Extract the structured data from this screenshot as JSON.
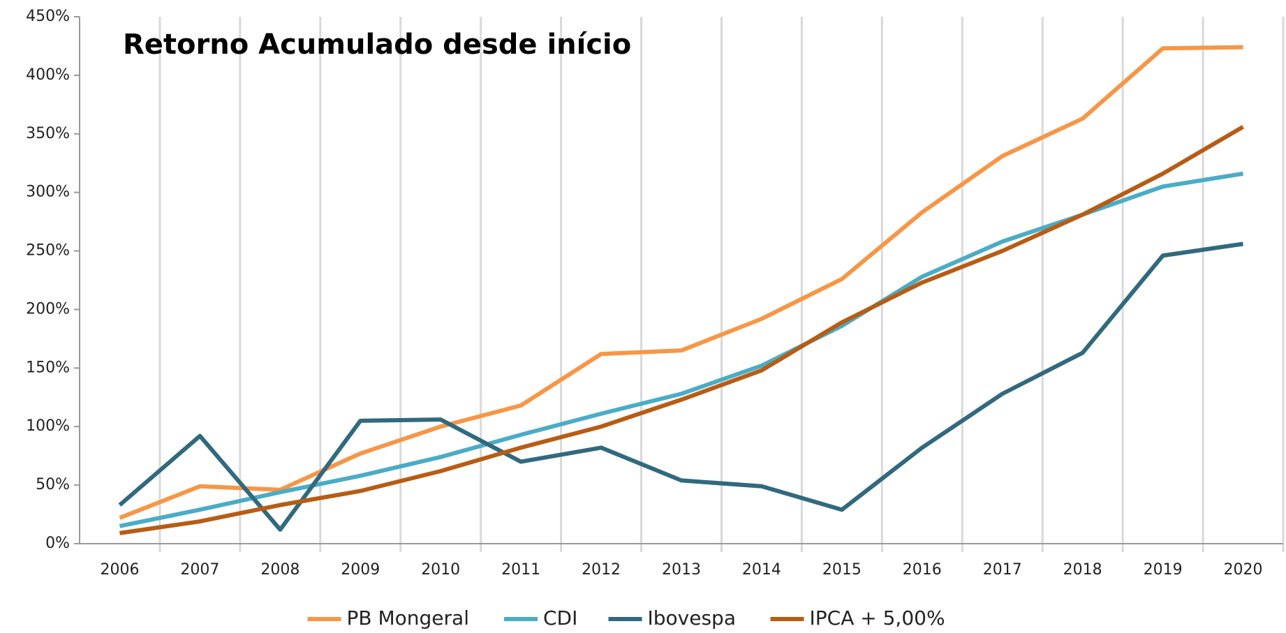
{
  "chart_data": {
    "type": "line",
    "title": "Retorno Acumulado desde início",
    "categories": [
      "2006",
      "2007",
      "2008",
      "2009",
      "2010",
      "2011",
      "2012",
      "2013",
      "2014",
      "2015",
      "2016",
      "2017",
      "2018",
      "2019",
      "2020"
    ],
    "series": [
      {
        "name": "PB Mongeral",
        "color": "#f79646",
        "values": [
          22,
          49,
          46,
          77,
          100,
          118,
          162,
          165,
          192,
          226,
          283,
          331,
          363,
          423,
          424
        ]
      },
      {
        "name": "CDI",
        "color": "#4bacc6",
        "values": [
          15,
          29,
          44,
          58,
          74,
          93,
          111,
          128,
          152,
          186,
          228,
          258,
          281,
          305,
          316
        ]
      },
      {
        "name": "Ibovespa",
        "color": "#31697e",
        "values": [
          33,
          92,
          12,
          105,
          106,
          70,
          82,
          54,
          49,
          29,
          82,
          128,
          163,
          246,
          256
        ]
      },
      {
        "name": "IPCA + 5,00%",
        "color": "#b85c14",
        "values": [
          9,
          19,
          33,
          45,
          62,
          82,
          100,
          123,
          148,
          189,
          223,
          250,
          281,
          316,
          356
        ]
      }
    ],
    "ylim": [
      0,
      450
    ],
    "yticks": [
      {
        "value": 0,
        "label": "0%"
      },
      {
        "value": 50,
        "label": "50%"
      },
      {
        "value": 100,
        "label": "100%"
      },
      {
        "value": 150,
        "label": "150%"
      },
      {
        "value": 200,
        "label": "200%"
      },
      {
        "value": 250,
        "label": "250%"
      },
      {
        "value": 300,
        "label": "300%"
      },
      {
        "value": 350,
        "label": "350%"
      },
      {
        "value": 400,
        "label": "400%"
      },
      {
        "value": 450,
        "label": "450%"
      }
    ],
    "grid": true,
    "legend": "bottom"
  }
}
